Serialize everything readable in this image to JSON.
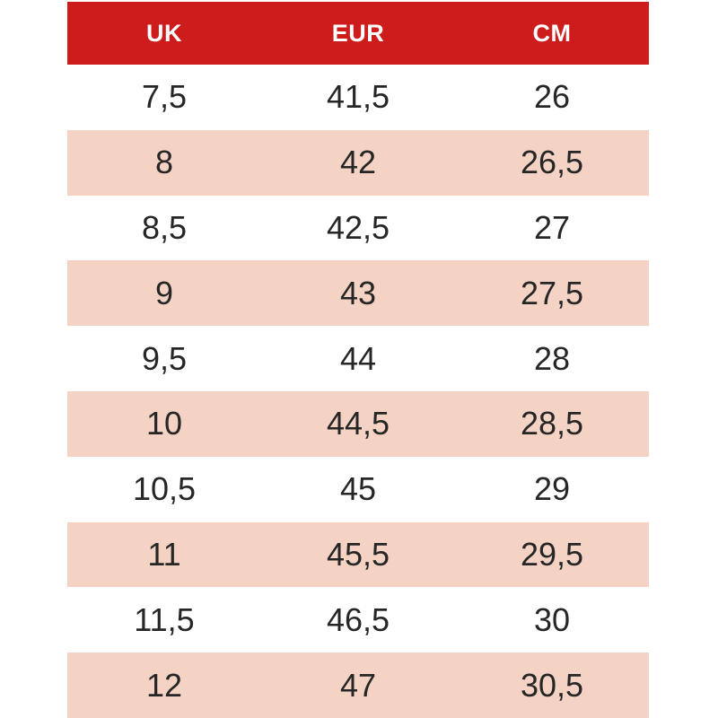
{
  "chart_data": {
    "type": "table",
    "columns": [
      "UK",
      "EUR",
      "CM"
    ],
    "rows": [
      [
        "7,5",
        "41,5",
        "26"
      ],
      [
        "8",
        "42",
        "26,5"
      ],
      [
        "8,5",
        "42,5",
        "27"
      ],
      [
        "9",
        "43",
        "27,5"
      ],
      [
        "9,5",
        "44",
        "28"
      ],
      [
        "10",
        "44,5",
        "28,5"
      ],
      [
        "10,5",
        "45",
        "29"
      ],
      [
        "11",
        "45,5",
        "29,5"
      ],
      [
        "11,5",
        "46,5",
        "30"
      ],
      [
        "12",
        "47",
        "30,5"
      ]
    ],
    "layout": {
      "header_position": "top",
      "row_striping": "every-second-row",
      "grid": "off"
    }
  },
  "colors": {
    "header_bg": "#ce1b1c",
    "header_text": "#ffffff",
    "row_bg": "#ffffff",
    "row_alt_bg": "#f5d3c4",
    "text": "#262626",
    "page_bg": "#ffffff"
  }
}
